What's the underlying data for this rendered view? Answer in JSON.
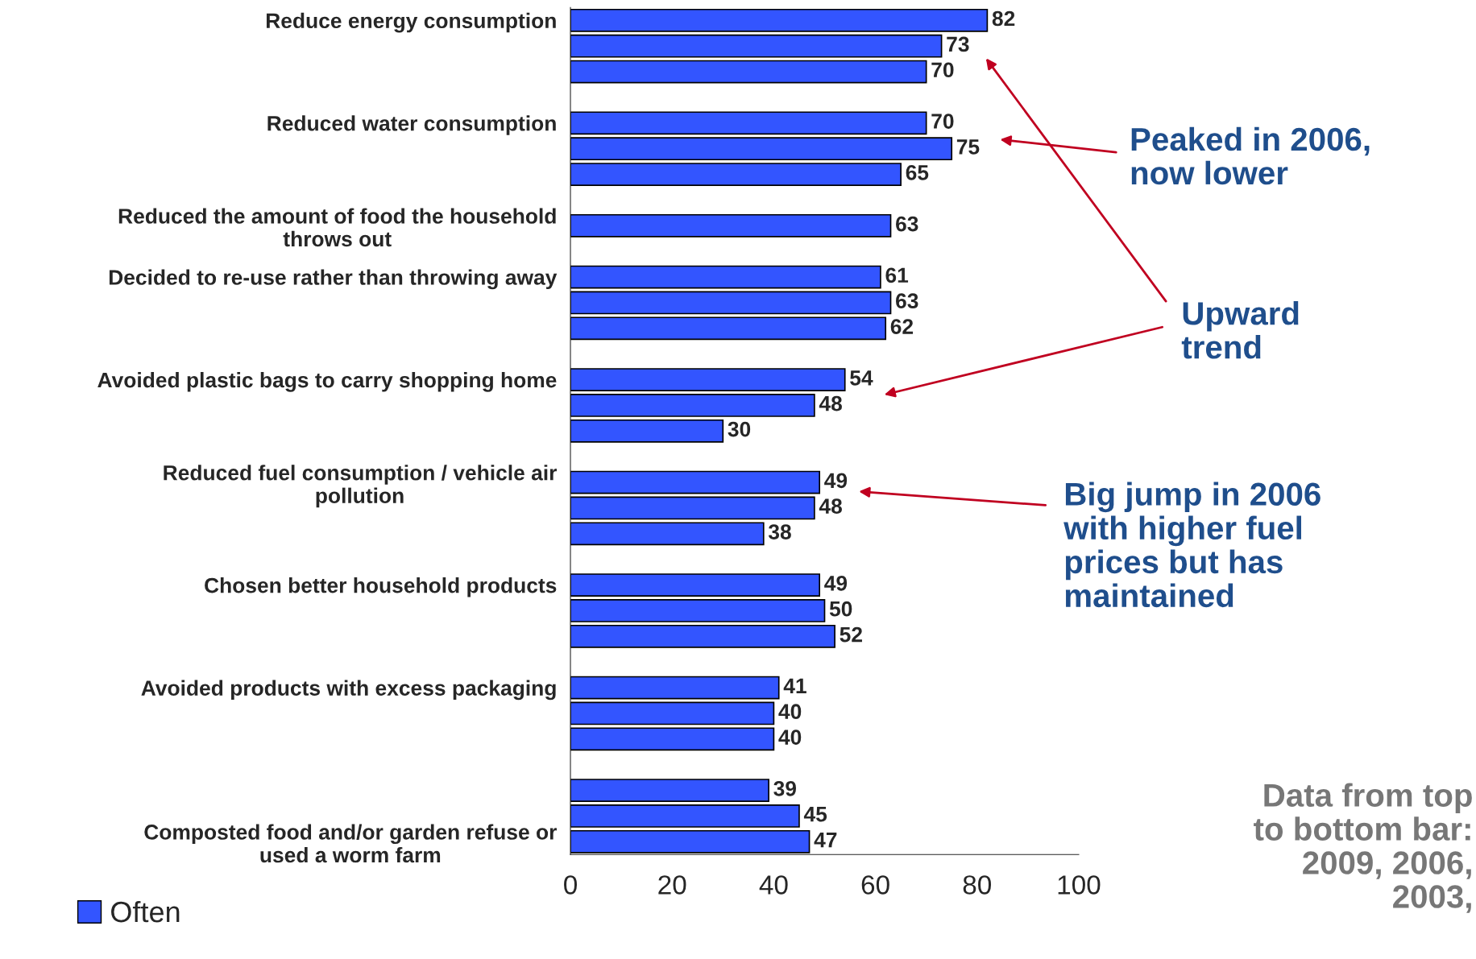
{
  "chart_data": {
    "type": "bar",
    "orientation": "horizontal",
    "categories": [
      "Reduce energy consumption",
      null,
      null,
      null,
      "Reduced water consumption",
      null,
      null,
      null,
      "Reduced the amount of food the household\nthrows out",
      null,
      "Decided to re-use rather than throwing away",
      null,
      null,
      null,
      "Avoided plastic bags to carry shopping home",
      null,
      null,
      null,
      "Reduced fuel consumption / vehicle air\npollution",
      null,
      null,
      null,
      "Chosen better household products",
      null,
      null,
      null,
      "Avoided products with excess packaging",
      null,
      null,
      null,
      null,
      null,
      "Composted food and/or garden refuse or\nused a worm farm"
    ],
    "series": [
      {
        "name": "Often",
        "color": "#3355ff",
        "values": [
          82,
          73,
          70,
          null,
          70,
          75,
          65,
          null,
          63,
          null,
          61,
          63,
          62,
          null,
          54,
          48,
          30,
          null,
          49,
          48,
          38,
          null,
          49,
          50,
          52,
          null,
          41,
          40,
          40,
          null,
          39,
          45,
          47
        ]
      }
    ],
    "xlim": [
      0,
      100
    ],
    "xticks": [
      0,
      20,
      40,
      60,
      80,
      100
    ],
    "data_labels": true,
    "legend": "bottom left",
    "grid": false,
    "annotations": [
      "Peaked in 2006,\nnow lower",
      "Upward\ntrend",
      "Big jump in 2006\nwith higher fuel\nprices but has\nmaintained",
      "Data from top\nto bottom bar:\n2009, 2006,\n2003,"
    ]
  }
}
